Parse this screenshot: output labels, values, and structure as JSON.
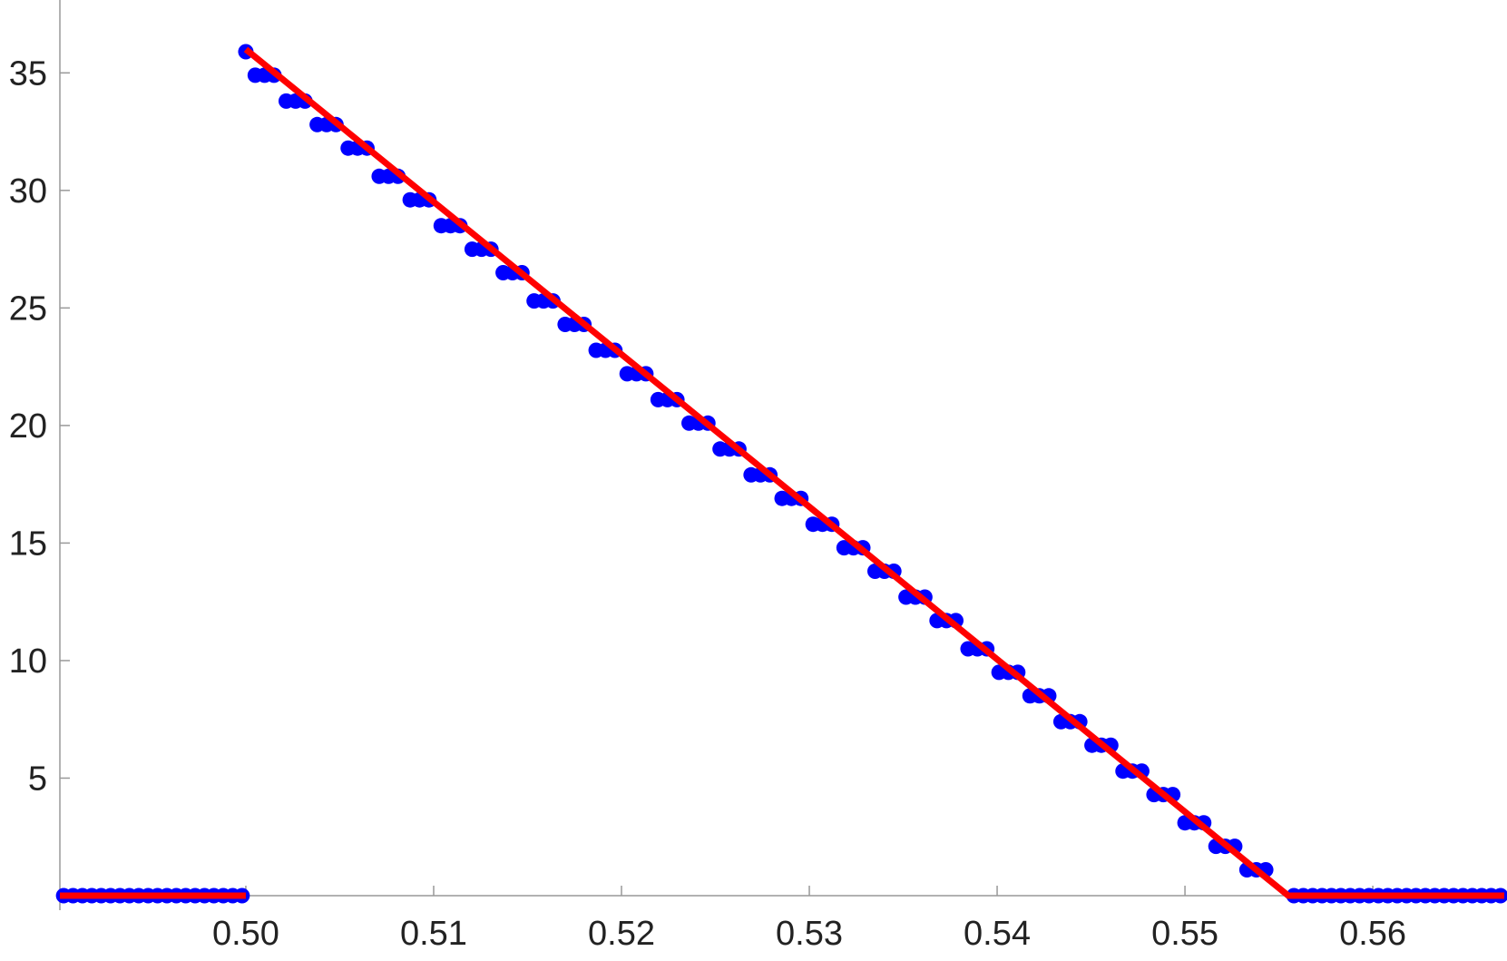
{
  "chart_data": {
    "type": "scatter",
    "xlim": [
      0.4901,
      0.567
    ],
    "ylim": [
      0,
      38.1
    ],
    "xticks": [
      {
        "value": 0.5,
        "label": "0.50"
      },
      0.51,
      0.52,
      0.53,
      0.54,
      0.55,
      0.56
    ],
    "yticks": [
      5,
      10,
      15,
      20,
      25,
      30,
      35
    ],
    "series": [
      {
        "type": "scatter",
        "color": "#0000ff",
        "x": [
          0.4903,
          0.4908,
          0.4913,
          0.4918,
          0.4923,
          0.4928,
          0.4933,
          0.4938,
          0.4943,
          0.4948,
          0.4953,
          0.4958,
          0.4963,
          0.4968,
          0.4973,
          0.4978,
          0.4983,
          0.4988,
          0.4993,
          0.4998,
          0.5,
          0.5005,
          0.501,
          0.5015,
          0.50215,
          0.50265,
          0.50315,
          0.5038,
          0.5043,
          0.5048,
          0.50545,
          0.50595,
          0.50645,
          0.5071,
          0.5076,
          0.5081,
          0.50875,
          0.50925,
          0.50975,
          0.5104,
          0.5109,
          0.5114,
          0.51205,
          0.51255,
          0.51305,
          0.5137,
          0.5142,
          0.5147,
          0.51535,
          0.51585,
          0.51635,
          0.517,
          0.5175,
          0.518,
          0.51865,
          0.51915,
          0.51965,
          0.5203,
          0.5208,
          0.5213,
          0.52195,
          0.52245,
          0.52295,
          0.5236,
          0.5241,
          0.5246,
          0.52525,
          0.52575,
          0.52625,
          0.5269,
          0.5274,
          0.5279,
          0.52855,
          0.52905,
          0.52955,
          0.5302,
          0.5307,
          0.5312,
          0.53185,
          0.53235,
          0.53285,
          0.5335,
          0.534,
          0.5345,
          0.53515,
          0.53565,
          0.53615,
          0.5368,
          0.5373,
          0.5378,
          0.53845,
          0.53895,
          0.53945,
          0.5401,
          0.5406,
          0.5411,
          0.54175,
          0.54225,
          0.54275,
          0.5434,
          0.5439,
          0.5444,
          0.54505,
          0.54555,
          0.54605,
          0.5467,
          0.5472,
          0.5477,
          0.54835,
          0.54885,
          0.54935,
          0.55,
          0.5505,
          0.551,
          0.55165,
          0.55215,
          0.55265,
          0.5533,
          0.5538,
          0.5543,
          0.5558,
          0.5563,
          0.5568,
          0.5573,
          0.5578,
          0.5583,
          0.5588,
          0.5593,
          0.5598,
          0.5603,
          0.5608,
          0.5613,
          0.5618,
          0.5623,
          0.5628,
          0.5633,
          0.5638,
          0.5643,
          0.5648,
          0.5653,
          0.5658,
          0.5663,
          0.5668
        ],
        "values": [
          0,
          0,
          0,
          0,
          0,
          0,
          0,
          0,
          0,
          0,
          0,
          0,
          0,
          0,
          0,
          0,
          0,
          0,
          0,
          0,
          35.9,
          34.9,
          34.9,
          34.9,
          33.8,
          33.8,
          33.8,
          32.8,
          32.8,
          32.8,
          31.8,
          31.8,
          31.8,
          30.6,
          30.6,
          30.6,
          29.6,
          29.6,
          29.6,
          28.5,
          28.5,
          28.5,
          27.5,
          27.5,
          27.5,
          26.5,
          26.5,
          26.5,
          25.3,
          25.3,
          25.3,
          24.3,
          24.3,
          24.3,
          23.2,
          23.2,
          23.2,
          22.2,
          22.2,
          22.2,
          21.1,
          21.1,
          21.1,
          20.1,
          20.1,
          20.1,
          19.0,
          19.0,
          19.0,
          17.9,
          17.9,
          17.9,
          16.9,
          16.9,
          16.9,
          15.8,
          15.8,
          15.8,
          14.8,
          14.8,
          14.8,
          13.8,
          13.8,
          13.8,
          12.7,
          12.7,
          12.7,
          11.7,
          11.7,
          11.7,
          10.5,
          10.5,
          10.5,
          9.5,
          9.5,
          9.5,
          8.5,
          8.5,
          8.5,
          7.4,
          7.4,
          7.4,
          6.4,
          6.4,
          6.4,
          5.3,
          5.3,
          5.3,
          4.3,
          4.3,
          4.3,
          3.1,
          3.1,
          3.1,
          2.1,
          2.1,
          2.1,
          1.1,
          1.1,
          1.1,
          0,
          0,
          0,
          0,
          0,
          0,
          0,
          0,
          0,
          0,
          0,
          0,
          0,
          0,
          0,
          0,
          0,
          0,
          0,
          0,
          0,
          0,
          0
        ]
      },
      {
        "type": "line",
        "color": "#ff0000",
        "x": [
          0.4901,
          0.5,
          0.5,
          0.5,
          0.5555,
          0.567
        ],
        "values": [
          0,
          0,
          null,
          36,
          0,
          0
        ]
      }
    ]
  }
}
